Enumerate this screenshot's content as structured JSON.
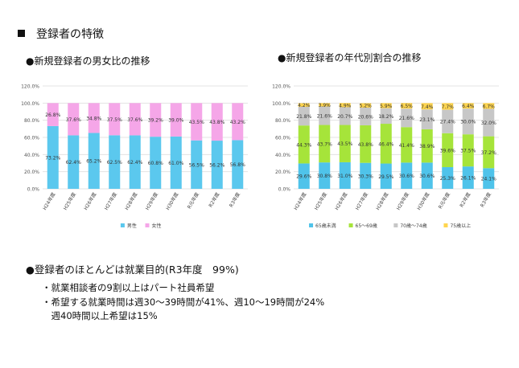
{
  "page": {
    "title": "登録者の特徴",
    "left_heading": "●新規登録者の男女比の推移",
    "right_heading": "●新規登録者の年代別割合の推移",
    "bottom_heading": "●登録者のほとんどは就業目的(R3年度　99%)",
    "bullets": [
      "・就業相談者の9割以上はパート社員希望",
      "・希望する就業時間は週30～39時間が41%、週10～19時間が24%",
      "　週40時間以上希望は15%"
    ]
  },
  "chart_data": [
    {
      "type": "bar",
      "stacked": true,
      "categories": [
        "H24年度",
        "H25年度",
        "H26年度",
        "H27年度",
        "H28年度",
        "H29年度",
        "H30年度",
        "R元年度",
        "R2年度",
        "R3年度"
      ],
      "series": [
        {
          "name": "男性",
          "color": "#5bc8ee",
          "values": [
            73.2,
            62.4,
            65.2,
            62.5,
            62.4,
            60.8,
            61.0,
            56.5,
            56.2,
            56.8
          ]
        },
        {
          "name": "女性",
          "color": "#f5a6e8",
          "values": [
            26.8,
            37.6,
            34.8,
            37.5,
            37.6,
            39.2,
            39.0,
            43.5,
            43.8,
            43.2
          ]
        }
      ],
      "yticks": [
        "0.0%",
        "20.0%",
        "40.0%",
        "60.0%",
        "80.0%",
        "100.0%",
        "120.0%"
      ],
      "ylim": [
        0,
        120
      ],
      "legend": "bottom"
    },
    {
      "type": "bar",
      "stacked": true,
      "categories": [
        "H24年度",
        "H25年度",
        "H26年度",
        "H27年度",
        "H28年度",
        "H29年度",
        "H30年度",
        "R元年度",
        "R2年度",
        "R3年度"
      ],
      "series": [
        {
          "name": "65歳未満",
          "color": "#4fc3ea",
          "values": [
            29.6,
            30.8,
            31.0,
            30.3,
            29.5,
            30.6,
            30.6,
            25.3,
            26.1,
            24.1
          ]
        },
        {
          "name": "65～69歳",
          "color": "#a6e43a",
          "values": [
            44.3,
            43.7,
            43.5,
            43.8,
            46.4,
            41.4,
            38.9,
            39.6,
            37.5,
            37.2
          ]
        },
        {
          "name": "70歳～74歳",
          "color": "#c7c7c7",
          "values": [
            21.8,
            21.6,
            20.7,
            20.6,
            18.2,
            21.6,
            23.1,
            27.4,
            30.0,
            32.0
          ]
        },
        {
          "name": "75歳以上",
          "color": "#ffd54f",
          "values": [
            4.2,
            3.9,
            4.9,
            5.2,
            5.9,
            6.5,
            7.4,
            7.7,
            6.4,
            6.7
          ]
        }
      ],
      "yticks": [
        "0.0%",
        "20.0%",
        "40.0%",
        "60.0%",
        "80.0%",
        "100.0%",
        "120.0%"
      ],
      "ylim": [
        0,
        120
      ],
      "legend": "bottom"
    }
  ]
}
